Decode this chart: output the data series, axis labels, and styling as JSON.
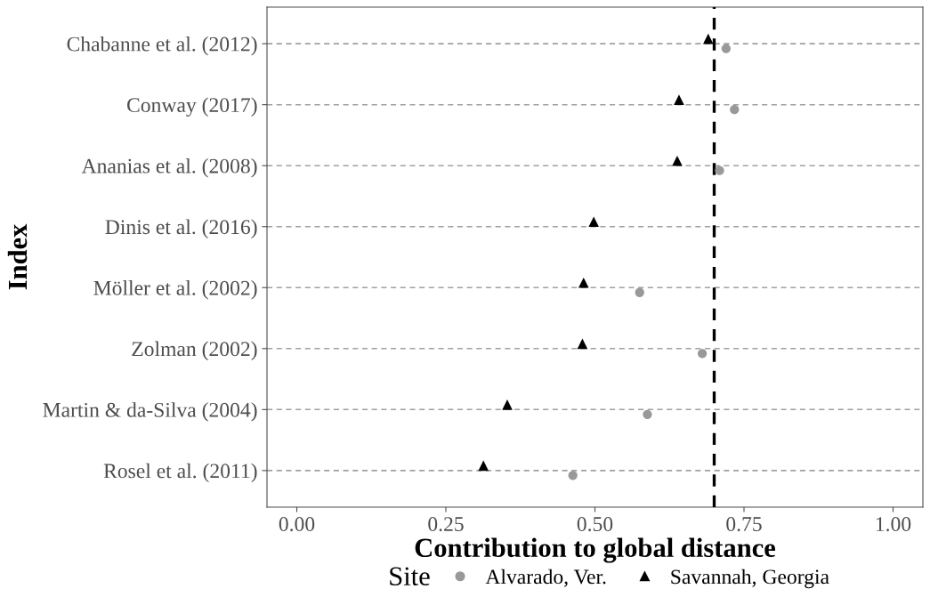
{
  "chart_data": {
    "type": "scatter",
    "orientation": "horizontal",
    "xlabel": "Contribution to global distance",
    "ylabel": "Index",
    "legend_title": "Site",
    "categories": [
      "Chabanne et al. (2012)",
      "Conway (2017)",
      "Ananias et al. (2008)",
      "Dinis et al. (2016)",
      "Möller et al. (2002)",
      "Zolman (2002)",
      "Martin & da-Silva (2004)",
      "Rosel et al. (2011)"
    ],
    "series": [
      {
        "name": "Alvarado, Ver.",
        "color": "#999999",
        "marker": "circle",
        "values": [
          0.72,
          0.734,
          0.709,
          null,
          0.575,
          0.68,
          0.588,
          0.463
        ]
      },
      {
        "name": "Savannah, Georgia",
        "color": "#000000",
        "marker": "triangle",
        "values": [
          0.69,
          0.641,
          0.638,
          0.498,
          0.481,
          0.479,
          0.353,
          0.313
        ]
      }
    ],
    "xlim": [
      -0.05,
      1.05
    ],
    "xticks": [
      {
        "value": 0,
        "label": "0.00"
      },
      {
        "value": 0.25,
        "label": "0.25"
      },
      {
        "value": 0.5,
        "label": "0.50"
      },
      {
        "value": 0.75,
        "label": "0.75"
      },
      {
        "value": 1,
        "label": "1.00"
      }
    ],
    "ref_lines": [
      {
        "axis": "x",
        "value": 0.7,
        "label": null,
        "color": "#000000",
        "line_style": "dashed"
      }
    ],
    "grid": "y",
    "legend": "bottom"
  }
}
